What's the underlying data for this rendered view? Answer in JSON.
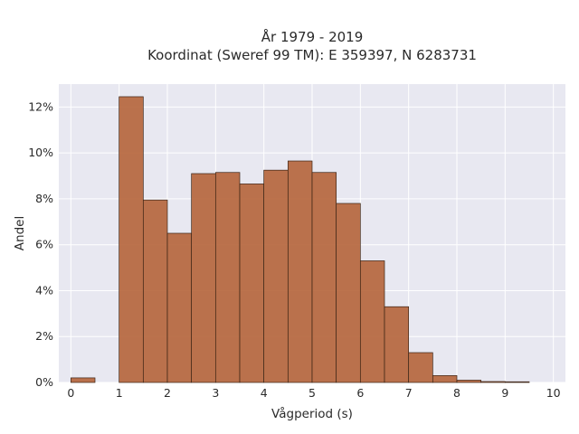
{
  "chart_data": {
    "type": "bar",
    "title_lines": [
      "År 1979 - 2019",
      "Koordinat (Sweref 99 TM): E 359397, N 6283731"
    ],
    "xlabel": "Vågperiod (s)",
    "ylabel": "Andel",
    "xlim": [
      -0.25,
      10.25
    ],
    "ylim": [
      0,
      0.13
    ],
    "xticks": [
      0,
      1,
      2,
      3,
      4,
      5,
      6,
      7,
      8,
      9,
      10
    ],
    "xtick_labels": [
      "0",
      "1",
      "2",
      "3",
      "4",
      "5",
      "6",
      "7",
      "8",
      "9",
      "10"
    ],
    "yticks": [
      0,
      0.02,
      0.04,
      0.06,
      0.08,
      0.1,
      0.12
    ],
    "ytick_labels": [
      "0%",
      "2%",
      "4%",
      "6%",
      "8%",
      "10%",
      "12%"
    ],
    "bin_width": 0.5,
    "bin_starts": [
      0,
      0.5,
      1,
      1.5,
      2,
      2.5,
      3,
      3.5,
      4,
      4.5,
      5,
      5.5,
      6,
      6.5,
      7,
      7.5,
      8,
      8.5,
      9
    ],
    "values": [
      0.002,
      0,
      0.1245,
      0.0795,
      0.065,
      0.091,
      0.0915,
      0.0865,
      0.0925,
      0.0965,
      0.0915,
      0.078,
      0.053,
      0.033,
      0.013,
      0.003,
      0.001,
      0.0004,
      0.0003
    ],
    "grid": true,
    "colors": {
      "bar": "#b5643a",
      "bar_edge": "#3b2416",
      "plot_bg": "#e8e8f1",
      "grid": "#ffffff"
    }
  }
}
